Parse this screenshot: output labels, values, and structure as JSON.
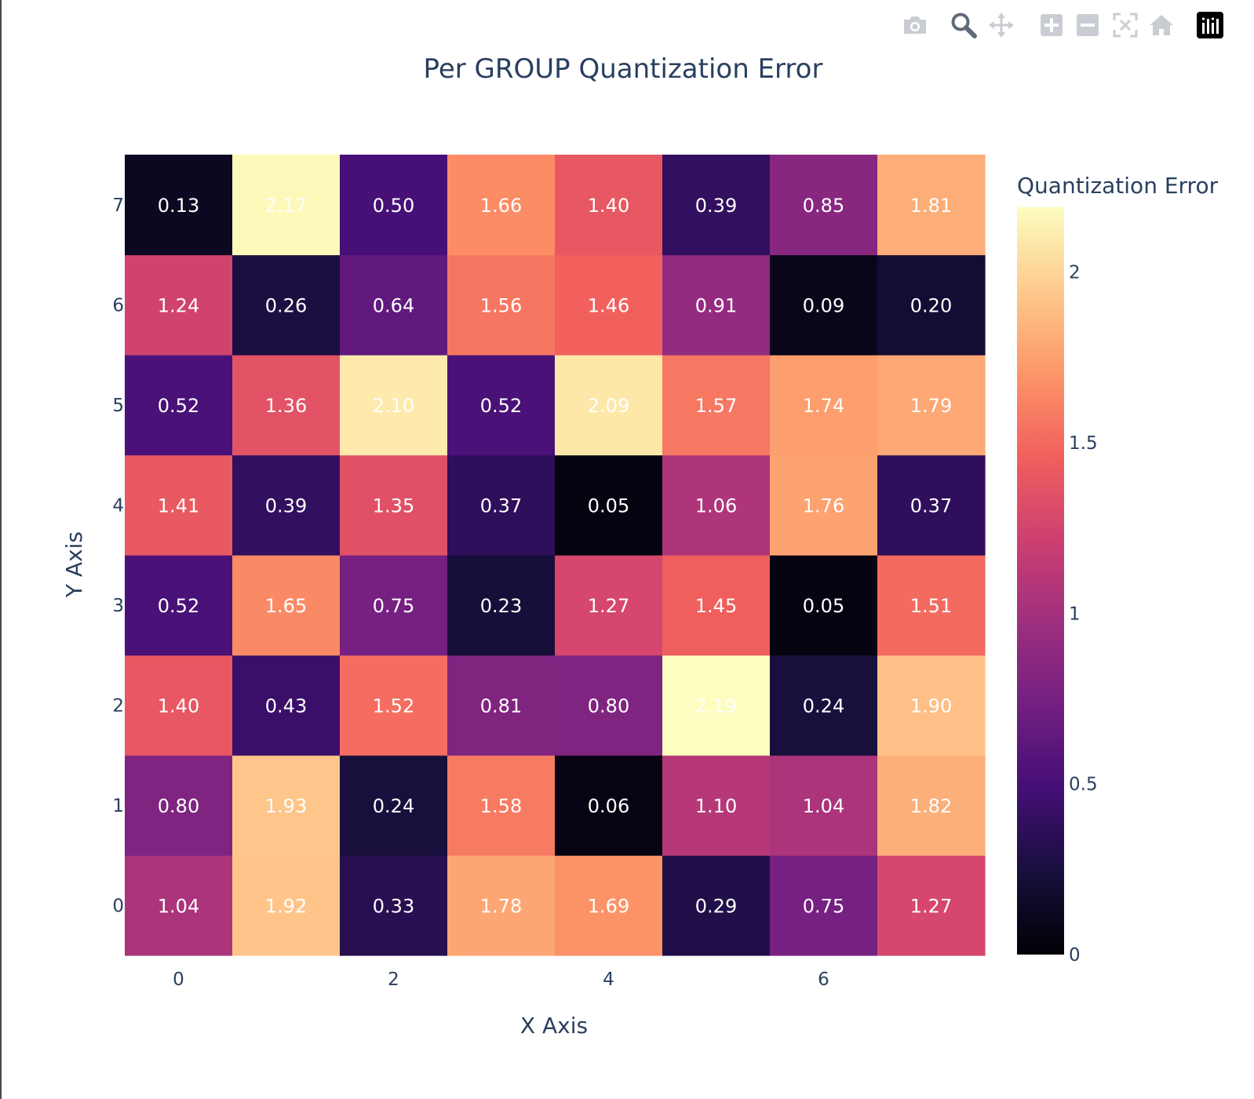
{
  "modebar": {
    "buttons": [
      {
        "name": "camera-icon"
      },
      {
        "name": "zoom-icon"
      },
      {
        "name": "pan-icon"
      },
      {
        "name": "zoom-in-icon"
      },
      {
        "name": "zoom-out-icon"
      },
      {
        "name": "autoscale-icon"
      },
      {
        "name": "reset-axes-icon"
      },
      {
        "name": "plotly-logo-icon"
      }
    ]
  },
  "chart_data": {
    "type": "heatmap",
    "title": "Per GROUP Quantization Error",
    "xlabel": "X Axis",
    "ylabel": "Y Axis",
    "x": [
      0,
      1,
      2,
      3,
      4,
      5,
      6,
      7
    ],
    "y": [
      0,
      1,
      2,
      3,
      4,
      5,
      6,
      7
    ],
    "x_ticks": [
      0,
      2,
      4,
      6
    ],
    "y_ticks": [
      0,
      1,
      2,
      3,
      4,
      5,
      6,
      7
    ],
    "z": [
      [
        1.04,
        1.92,
        0.33,
        1.78,
        1.69,
        0.29,
        0.75,
        1.27
      ],
      [
        0.8,
        1.93,
        0.24,
        1.58,
        0.06,
        1.1,
        1.04,
        1.82
      ],
      [
        1.4,
        0.43,
        1.52,
        0.81,
        0.8,
        2.19,
        0.24,
        1.9
      ],
      [
        0.52,
        1.65,
        0.75,
        0.23,
        1.27,
        1.45,
        0.05,
        1.51
      ],
      [
        1.41,
        0.39,
        1.35,
        0.37,
        0.05,
        1.06,
        1.76,
        0.37
      ],
      [
        0.52,
        1.36,
        2.1,
        0.52,
        2.09,
        1.57,
        1.74,
        1.79
      ],
      [
        1.24,
        0.26,
        0.64,
        1.56,
        1.46,
        0.91,
        0.09,
        0.2
      ],
      [
        0.13,
        2.17,
        0.5,
        1.66,
        1.4,
        0.39,
        0.85,
        1.81
      ]
    ],
    "colorscale": "magma",
    "zmin": 0,
    "zmax": 2.19,
    "colorbar": {
      "title": "Quantization Error",
      "ticks": [
        0,
        0.5,
        1,
        1.5,
        2
      ],
      "tick_labels": [
        "0",
        "0.5",
        "1",
        "1.5",
        "2"
      ]
    }
  }
}
